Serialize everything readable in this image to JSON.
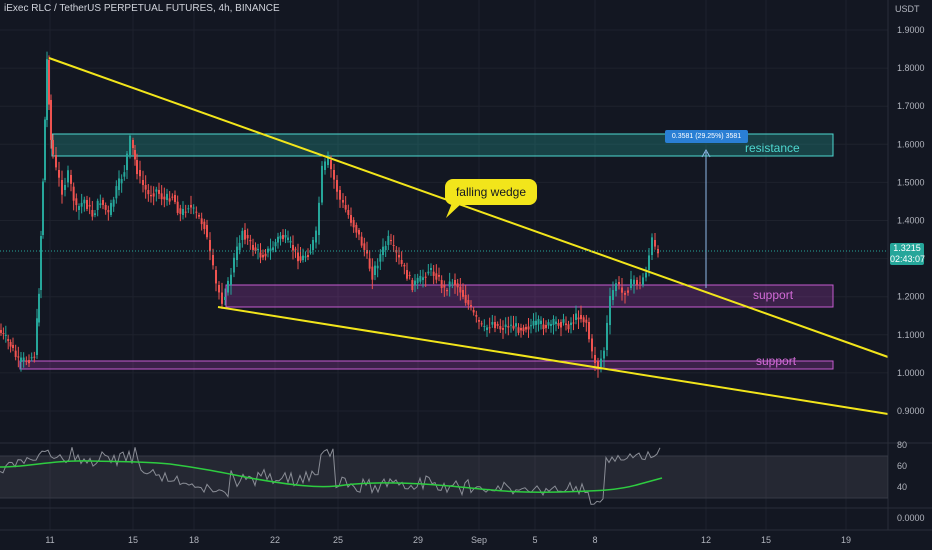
{
  "header": {
    "symbol_title": "iExec RLC / TetherUS PERPETUAL FUTURES, 4h, BINANCE",
    "currency": "USDT"
  },
  "price_axis": {
    "labels": [
      "1.9000",
      "1.8000",
      "1.7000",
      "1.6000",
      "1.5000",
      "1.4000",
      "1.3000",
      "1.2000",
      "1.1000",
      "1.0000",
      "0.9000"
    ],
    "current_price": "1.3215",
    "countdown": "02:43:07",
    "tag_color": "#26a69a"
  },
  "rsi_axis": {
    "labels": [
      "80",
      "60",
      "40"
    ],
    "bottom_label": "0.0000"
  },
  "time_axis": {
    "labels": [
      "11",
      "15",
      "18",
      "22",
      "25",
      "29",
      "Sep",
      "5",
      "8",
      "12",
      "15",
      "19"
    ]
  },
  "annotations": {
    "pattern_label": "falling wedge",
    "resistance_label": "resistance",
    "support_upper_label": "support",
    "support_lower_label": "support",
    "measure_label": "0.3581 (29.25%) 3581"
  },
  "colors": {
    "background": "#131722",
    "bull": "#26a69a",
    "bear": "#ef5350",
    "wedge_line": "#f2e51b",
    "resistance_zone": "#26a69a",
    "support_zone": "#b43fc0",
    "rsi_ma": "#2ecc40"
  }
}
